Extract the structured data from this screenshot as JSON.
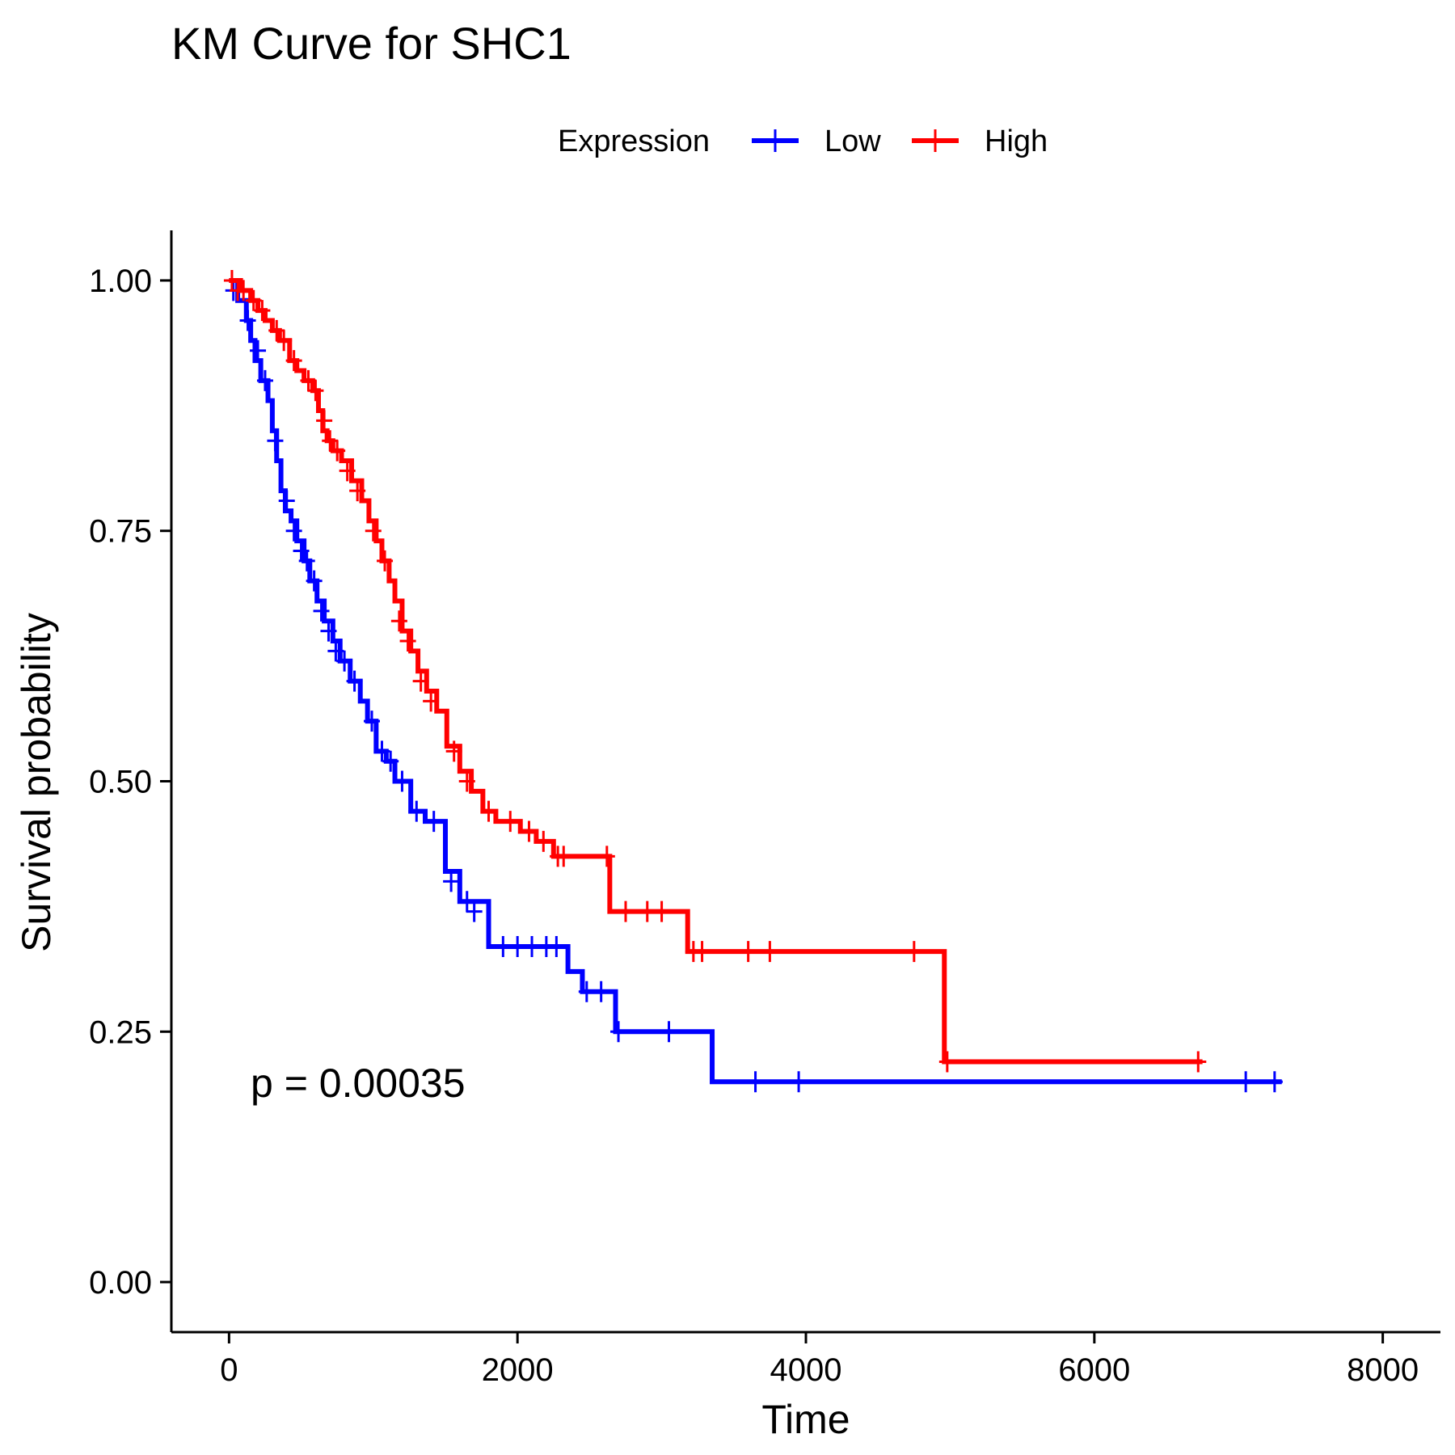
{
  "chart_data": {
    "type": "line",
    "subtype": "kaplan-meier",
    "title": "KM Curve for SHC1",
    "xlabel": "Time",
    "ylabel": "Survival probability",
    "xlim": [
      -400,
      8400
    ],
    "ylim": [
      -0.05,
      1.05
    ],
    "xticks": [
      0,
      2000,
      4000,
      6000,
      8000
    ],
    "xtick_labels": [
      "0",
      "2000",
      "4000",
      "6000",
      "8000"
    ],
    "yticks": [
      0,
      0.25,
      0.5,
      0.75,
      1.0
    ],
    "ytick_labels": [
      "0.00",
      "0.25",
      "0.50",
      "0.75",
      "1.00"
    ],
    "grid": false,
    "legend": {
      "title": "Expression",
      "placement": "top",
      "entries": [
        "Low",
        "High"
      ]
    },
    "annotation": "p = 0.00035",
    "series": [
      {
        "name": "Low",
        "color": "#0000FF",
        "steps": [
          [
            0,
            1.0
          ],
          [
            60,
            0.98
          ],
          [
            120,
            0.96
          ],
          [
            150,
            0.94
          ],
          [
            180,
            0.92
          ],
          [
            220,
            0.9
          ],
          [
            270,
            0.88
          ],
          [
            300,
            0.85
          ],
          [
            330,
            0.82
          ],
          [
            360,
            0.79
          ],
          [
            390,
            0.77
          ],
          [
            430,
            0.76
          ],
          [
            470,
            0.74
          ],
          [
            520,
            0.72
          ],
          [
            560,
            0.7
          ],
          [
            610,
            0.68
          ],
          [
            660,
            0.66
          ],
          [
            720,
            0.64
          ],
          [
            770,
            0.62
          ],
          [
            840,
            0.6
          ],
          [
            910,
            0.58
          ],
          [
            960,
            0.56
          ],
          [
            1020,
            0.53
          ],
          [
            1090,
            0.52
          ],
          [
            1150,
            0.5
          ],
          [
            1260,
            0.47
          ],
          [
            1360,
            0.46
          ],
          [
            1500,
            0.41
          ],
          [
            1600,
            0.38
          ],
          [
            1800,
            0.335
          ],
          [
            2350,
            0.31
          ],
          [
            2450,
            0.29
          ],
          [
            2680,
            0.25
          ],
          [
            3350,
            0.2
          ],
          [
            7300,
            0.2
          ]
        ],
        "censored": [
          [
            30,
            0.99
          ],
          [
            130,
            0.96
          ],
          [
            200,
            0.93
          ],
          [
            250,
            0.9
          ],
          [
            320,
            0.84
          ],
          [
            400,
            0.78
          ],
          [
            450,
            0.75
          ],
          [
            500,
            0.73
          ],
          [
            540,
            0.72
          ],
          [
            590,
            0.7
          ],
          [
            640,
            0.67
          ],
          [
            690,
            0.65
          ],
          [
            740,
            0.63
          ],
          [
            800,
            0.62
          ],
          [
            870,
            0.6
          ],
          [
            990,
            0.56
          ],
          [
            1060,
            0.53
          ],
          [
            1120,
            0.52
          ],
          [
            1200,
            0.5
          ],
          [
            1300,
            0.47
          ],
          [
            1420,
            0.46
          ],
          [
            1540,
            0.4
          ],
          [
            1650,
            0.38
          ],
          [
            1700,
            0.37
          ],
          [
            1900,
            0.335
          ],
          [
            2000,
            0.335
          ],
          [
            2100,
            0.335
          ],
          [
            2200,
            0.335
          ],
          [
            2270,
            0.335
          ],
          [
            2480,
            0.29
          ],
          [
            2580,
            0.29
          ],
          [
            2700,
            0.25
          ],
          [
            3050,
            0.25
          ],
          [
            3650,
            0.2
          ],
          [
            3950,
            0.2
          ],
          [
            7050,
            0.2
          ],
          [
            7250,
            0.2
          ]
        ]
      },
      {
        "name": "High",
        "color": "#FF0000",
        "steps": [
          [
            0,
            1.0
          ],
          [
            80,
            0.99
          ],
          [
            150,
            0.98
          ],
          [
            200,
            0.97
          ],
          [
            250,
            0.96
          ],
          [
            300,
            0.95
          ],
          [
            350,
            0.94
          ],
          [
            420,
            0.92
          ],
          [
            470,
            0.91
          ],
          [
            520,
            0.9
          ],
          [
            580,
            0.89
          ],
          [
            620,
            0.87
          ],
          [
            650,
            0.85
          ],
          [
            680,
            0.84
          ],
          [
            720,
            0.83
          ],
          [
            780,
            0.82
          ],
          [
            850,
            0.8
          ],
          [
            920,
            0.78
          ],
          [
            970,
            0.76
          ],
          [
            1020,
            0.74
          ],
          [
            1060,
            0.72
          ],
          [
            1110,
            0.7
          ],
          [
            1150,
            0.68
          ],
          [
            1200,
            0.65
          ],
          [
            1260,
            0.63
          ],
          [
            1310,
            0.61
          ],
          [
            1370,
            0.59
          ],
          [
            1440,
            0.57
          ],
          [
            1510,
            0.535
          ],
          [
            1600,
            0.51
          ],
          [
            1680,
            0.49
          ],
          [
            1760,
            0.47
          ],
          [
            1850,
            0.46
          ],
          [
            2020,
            0.45
          ],
          [
            2130,
            0.44
          ],
          [
            2250,
            0.425
          ],
          [
            2640,
            0.37
          ],
          [
            3180,
            0.33
          ],
          [
            4960,
            0.22
          ],
          [
            6750,
            0.22
          ]
        ],
        "censored": [
          [
            20,
            1.0
          ],
          [
            60,
            0.99
          ],
          [
            100,
            0.99
          ],
          [
            170,
            0.98
          ],
          [
            230,
            0.97
          ],
          [
            330,
            0.95
          ],
          [
            380,
            0.94
          ],
          [
            450,
            0.92
          ],
          [
            550,
            0.9
          ],
          [
            600,
            0.89
          ],
          [
            660,
            0.86
          ],
          [
            700,
            0.84
          ],
          [
            750,
            0.83
          ],
          [
            820,
            0.81
          ],
          [
            890,
            0.79
          ],
          [
            1000,
            0.75
          ],
          [
            1080,
            0.72
          ],
          [
            1180,
            0.66
          ],
          [
            1240,
            0.64
          ],
          [
            1330,
            0.6
          ],
          [
            1400,
            0.58
          ],
          [
            1560,
            0.53
          ],
          [
            1650,
            0.5
          ],
          [
            1800,
            0.47
          ],
          [
            1950,
            0.46
          ],
          [
            2080,
            0.45
          ],
          [
            2180,
            0.44
          ],
          [
            2280,
            0.425
          ],
          [
            2320,
            0.425
          ],
          [
            2620,
            0.425
          ],
          [
            2750,
            0.37
          ],
          [
            2900,
            0.37
          ],
          [
            3000,
            0.37
          ],
          [
            3220,
            0.33
          ],
          [
            3280,
            0.33
          ],
          [
            3600,
            0.33
          ],
          [
            3750,
            0.33
          ],
          [
            4750,
            0.33
          ],
          [
            4980,
            0.22
          ],
          [
            6720,
            0.22
          ]
        ]
      }
    ]
  }
}
